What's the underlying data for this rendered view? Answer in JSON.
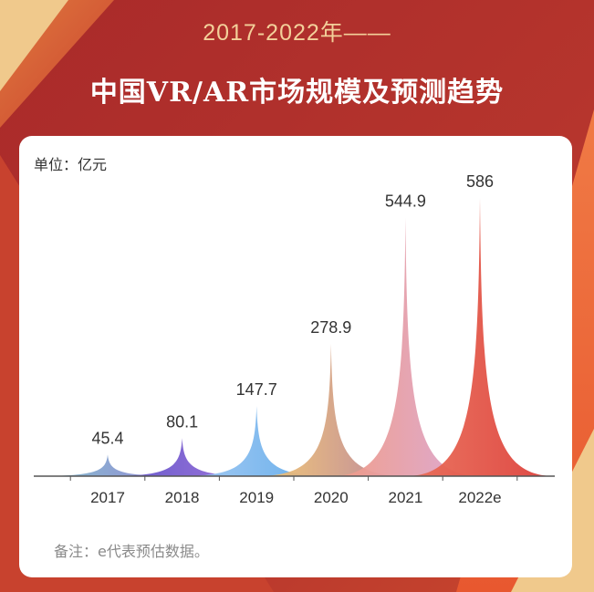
{
  "header": {
    "subtitle": "2017-2022年——",
    "title": "中国VR/AR市场规模及预测趋势"
  },
  "card": {
    "unit": "单位：亿元",
    "note": "备注：e代表预估数据。"
  },
  "colors": {
    "background": "#b8322c",
    "subtitle": "#f3d09a",
    "title": "#ffffff"
  },
  "chart_data": {
    "type": "area",
    "title": "中国VR/AR市场规模及预测趋势",
    "ylabel": "单位：亿元",
    "categories": [
      "2017",
      "2018",
      "2019",
      "2020",
      "2021",
      "2022e"
    ],
    "values": [
      45.4,
      80.1,
      147.7,
      278.9,
      544.9,
      586
    ],
    "value_labels": [
      "45.4",
      "80.1",
      "147.7",
      "278.9",
      "544.9",
      "586"
    ],
    "ylim": [
      0,
      586
    ],
    "grid": false,
    "colors": [
      [
        "#7ec1c9",
        "#8f80d6"
      ],
      [
        "#5a4fc8",
        "#9c6fd8"
      ],
      [
        "#a3c9f2",
        "#5aa8ea"
      ],
      [
        "#f3c870",
        "#b8809a"
      ],
      [
        "#f19a82",
        "#d9a6d6"
      ],
      [
        "#ea6f58",
        "#dc3e3a"
      ]
    ]
  }
}
